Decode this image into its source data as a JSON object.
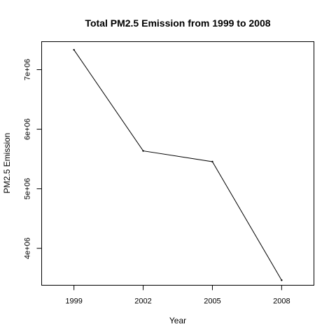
{
  "chart_data": {
    "type": "line",
    "title": "Total PM2.5 Emission from 1999 to 2008",
    "xlabel": "Year",
    "ylabel": "PM2.5 Emission",
    "x": [
      1999,
      2002,
      2005,
      2008
    ],
    "values": [
      7332967,
      5635780,
      5454703,
      3464206
    ],
    "xlim": [
      1997.6,
      2009.4
    ],
    "ylim": [
      3380000,
      7470000
    ],
    "x_ticks": [
      1999,
      2002,
      2005,
      2008
    ],
    "x_tick_labels": [
      "1999",
      "2002",
      "2005",
      "2008"
    ],
    "y_ticks": [
      4000000,
      5000000,
      6000000,
      7000000
    ],
    "y_tick_labels": [
      "4e+06",
      "5e+06",
      "6e+06",
      "7e+06"
    ],
    "grid": false,
    "legend": "none",
    "line_color": "#000000",
    "point_color": "#000000",
    "background": "#ffffff"
  }
}
